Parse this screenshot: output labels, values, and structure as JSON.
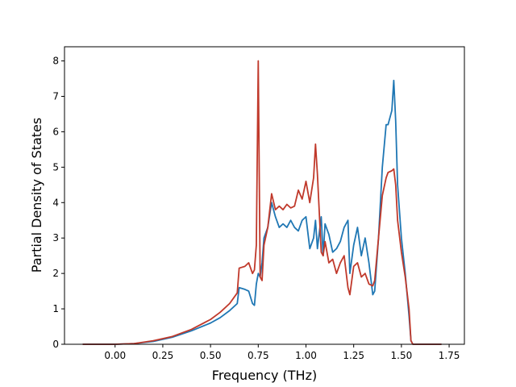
{
  "chart_data": {
    "type": "line",
    "xlabel": "Frequency (THz)",
    "ylabel": "Partial Density of States",
    "x": [
      -0.17,
      0,
      0.1,
      0.2,
      0.3,
      0.4,
      0.5,
      0.55,
      0.6,
      0.64,
      0.65,
      0.68,
      0.7,
      0.72,
      0.73,
      0.74,
      0.75,
      0.76,
      0.77,
      0.78,
      0.8,
      0.82,
      0.84,
      0.86,
      0.88,
      0.9,
      0.92,
      0.94,
      0.96,
      0.98,
      1.0,
      1.02,
      1.04,
      1.05,
      1.06,
      1.08,
      1.09,
      1.1,
      1.12,
      1.14,
      1.16,
      1.18,
      1.2,
      1.22,
      1.23,
      1.25,
      1.27,
      1.29,
      1.31,
      1.33,
      1.35,
      1.36,
      1.38,
      1.4,
      1.42,
      1.43,
      1.45,
      1.46,
      1.47,
      1.48,
      1.5,
      1.52,
      1.54,
      1.55,
      1.56,
      1.71
    ],
    "series": [
      {
        "color": "#1f77b4",
        "values": [
          0,
          0,
          0.02,
          0.08,
          0.2,
          0.38,
          0.6,
          0.75,
          0.95,
          1.15,
          1.6,
          1.55,
          1.5,
          1.15,
          1.1,
          1.7,
          2.0,
          1.9,
          2.3,
          3.0,
          3.3,
          4.0,
          3.6,
          3.3,
          3.4,
          3.3,
          3.5,
          3.3,
          3.2,
          3.5,
          3.6,
          2.7,
          3.0,
          3.5,
          2.7,
          3.6,
          2.5,
          3.4,
          3.1,
          2.6,
          2.7,
          2.9,
          3.3,
          3.5,
          2.0,
          2.8,
          3.3,
          2.5,
          3.0,
          2.3,
          1.4,
          1.5,
          3.0,
          5.0,
          6.2,
          6.2,
          6.6,
          7.45,
          6.3,
          4.5,
          3.0,
          2.0,
          0.8,
          0.1,
          0,
          0
        ]
      },
      {
        "color": "#c0392b",
        "values": [
          0,
          0,
          0.02,
          0.1,
          0.22,
          0.42,
          0.7,
          0.9,
          1.15,
          1.45,
          2.15,
          2.2,
          2.3,
          2.0,
          2.1,
          2.8,
          8.0,
          1.9,
          1.8,
          2.8,
          3.3,
          4.25,
          3.8,
          3.9,
          3.8,
          3.95,
          3.85,
          3.9,
          4.35,
          4.1,
          4.6,
          4.0,
          4.7,
          5.65,
          4.8,
          2.6,
          2.5,
          2.9,
          2.3,
          2.4,
          2.0,
          2.3,
          2.5,
          1.6,
          1.4,
          2.2,
          2.3,
          1.9,
          2.0,
          1.7,
          1.65,
          1.8,
          3.0,
          4.2,
          4.7,
          4.85,
          4.9,
          4.95,
          4.5,
          3.5,
          2.6,
          1.9,
          1.0,
          0.1,
          0,
          0
        ]
      }
    ],
    "xlim": [
      -0.265,
      1.83
    ],
    "ylim": [
      0,
      8.4
    ],
    "xticks": [
      {
        "value": 0,
        "label": "0.00"
      },
      0.25,
      {
        "value": 0.5,
        "label": "0.50"
      },
      0.75,
      {
        "value": 1,
        "label": "1.00"
      },
      1.25,
      {
        "value": 1.5,
        "label": "1.50"
      },
      1.75
    ],
    "yticks": [
      0,
      1,
      2,
      3,
      4,
      5,
      6,
      7,
      8
    ],
    "grid": false
  }
}
